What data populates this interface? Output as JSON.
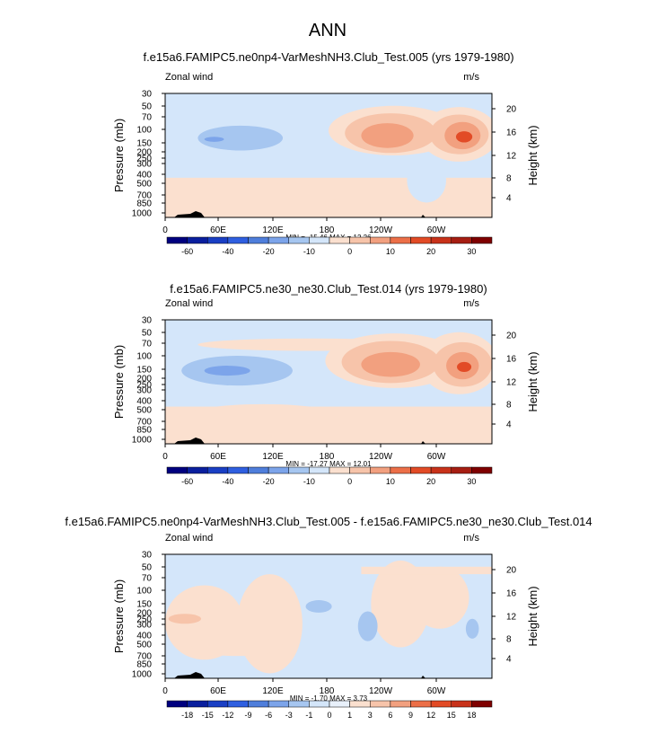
{
  "page_title": "ANN",
  "colors": {
    "field_bg": "#d4e6fa",
    "lev_neg1": "#a6c6f0",
    "lev_neg2": "#7ca4ea",
    "lev_neg3": "#4f7edb",
    "lev_pos1": "#fbe0cf",
    "lev_pos2": "#f7c4aa",
    "lev_pos3": "#f2a07f",
    "lev_pos4": "#ec6f48",
    "lev_pos5": "#e24b26",
    "topography": "#000000"
  },
  "chart_data": [
    {
      "type": "heatmap",
      "title": "f.e15a6.FAMIPC5.ne0np4-VarMeshNH3.Club_Test.005 (yrs 1979-1980)",
      "left_label": "Zonal wind",
      "right_label": "m/s",
      "ylabel": "Pressure (mb)",
      "ylabel_right": "Height (km)",
      "xticks": [
        "0",
        "60E",
        "120E",
        "180",
        "120W",
        "60W"
      ],
      "yticks": [
        "30",
        "50",
        "70",
        "100",
        "150",
        "200",
        "250",
        "300",
        "400",
        "500",
        "700",
        "850",
        "1000"
      ],
      "height_ticks": [
        "20",
        "16",
        "12",
        "8",
        "4"
      ],
      "minmax": "MIN = -15.46   MAX =  12.26",
      "colorbar": {
        "labels": [
          "-60",
          "-40",
          "-20",
          "-10",
          "0",
          "10",
          "20",
          "30"
        ],
        "colors": [
          "#00007f",
          "#0a1f9e",
          "#1a3fc4",
          "#2f5fe0",
          "#4f7edb",
          "#7ca4ea",
          "#a6c6f0",
          "#d4e6fa",
          "#fbe0cf",
          "#f7c4aa",
          "#f2a07f",
          "#ec6f48",
          "#e24b26",
          "#c8321a",
          "#a61e12",
          "#7f0000"
        ]
      }
    },
    {
      "type": "heatmap",
      "title": "f.e15a6.FAMIPC5.ne30_ne30.Club_Test.014 (yrs 1979-1980)",
      "left_label": "Zonal wind",
      "right_label": "m/s",
      "ylabel": "Pressure (mb)",
      "ylabel_right": "Height (km)",
      "xticks": [
        "0",
        "60E",
        "120E",
        "180",
        "120W",
        "60W"
      ],
      "yticks": [
        "30",
        "50",
        "70",
        "100",
        "150",
        "200",
        "250",
        "300",
        "400",
        "500",
        "700",
        "850",
        "1000"
      ],
      "height_ticks": [
        "20",
        "16",
        "12",
        "8",
        "4"
      ],
      "minmax": "MIN = -17.27   MAX =  12.01",
      "colorbar": {
        "labels": [
          "-60",
          "-40",
          "-20",
          "-10",
          "0",
          "10",
          "20",
          "30"
        ],
        "colors": [
          "#00007f",
          "#0a1f9e",
          "#1a3fc4",
          "#2f5fe0",
          "#4f7edb",
          "#7ca4ea",
          "#a6c6f0",
          "#d4e6fa",
          "#fbe0cf",
          "#f7c4aa",
          "#f2a07f",
          "#ec6f48",
          "#e24b26",
          "#c8321a",
          "#a61e12",
          "#7f0000"
        ]
      }
    },
    {
      "type": "heatmap",
      "title": "f.e15a6.FAMIPC5.ne0np4-VarMeshNH3.Club_Test.005 - f.e15a6.FAMIPC5.ne30_ne30.Club_Test.014",
      "left_label": "Zonal wind",
      "right_label": "m/s",
      "ylabel": "Pressure (mb)",
      "ylabel_right": "Height (km)",
      "xticks": [
        "0",
        "60E",
        "120E",
        "180",
        "120W",
        "60W"
      ],
      "yticks": [
        "30",
        "50",
        "70",
        "100",
        "150",
        "200",
        "250",
        "300",
        "400",
        "500",
        "700",
        "850",
        "1000"
      ],
      "height_ticks": [
        "20",
        "16",
        "12",
        "8",
        "4"
      ],
      "minmax": "MIN = -1.70   MAX =  3.73",
      "colorbar": {
        "labels": [
          "-18",
          "-15",
          "-12",
          "-9",
          "-6",
          "-3",
          "-1",
          "0",
          "1",
          "3",
          "6",
          "9",
          "12",
          "15",
          "18"
        ],
        "colors": [
          "#00007f",
          "#0a1f9e",
          "#1a3fc4",
          "#2f5fe0",
          "#4f7edb",
          "#7ca4ea",
          "#a6c6f0",
          "#d4e6fa",
          "#e8f0fa",
          "#fbe0cf",
          "#f7c4aa",
          "#f2a07f",
          "#ec6f48",
          "#e24b26",
          "#c8321a",
          "#7f0000"
        ]
      }
    }
  ]
}
